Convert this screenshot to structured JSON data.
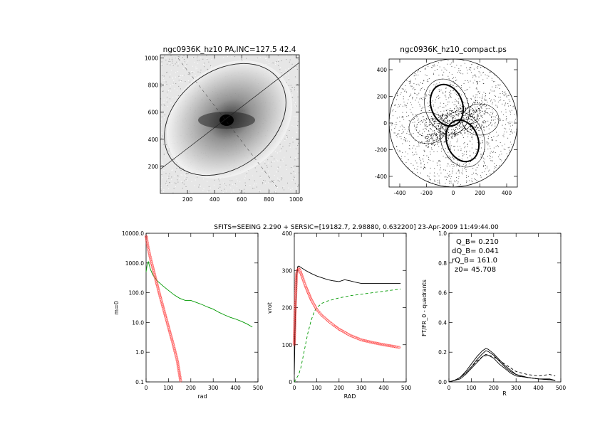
{
  "suptitle": "SFITS=SEEING 2.290 + SERSIC=[19182.7, 2.98880, 0.632200]  23-Apr-2009 11:49:44.00",
  "chart_data": [
    {
      "id": "image-panel",
      "type": "heatmap",
      "title": "ngc0936K_hz10 PA,INC=127.5 42.4",
      "xlim": [
        0,
        1024
      ],
      "ylim": [
        0,
        1024
      ],
      "xticks": [
        "200",
        "400",
        "600",
        "800",
        "1000"
      ],
      "yticks": [
        "200",
        "400",
        "600",
        "800",
        "1000"
      ],
      "ellipse": {
        "cx": 510,
        "cy": 535,
        "pa_deg": 127.5,
        "inc_deg": 42.4
      }
    },
    {
      "id": "compact-panel",
      "type": "scatter",
      "title": "ngc0936K_hz10_compact.ps",
      "xlim": [
        -480,
        480
      ],
      "ylim": [
        -480,
        480
      ],
      "xticks": [
        "-400",
        "-200",
        "0",
        "200",
        "400"
      ],
      "yticks": [
        "-400",
        "-200",
        "0",
        "200",
        "400"
      ],
      "disk_radius": 440
    },
    {
      "id": "density-panel",
      "type": "line",
      "title": "",
      "xlabel": "rad",
      "ylabel": "m=0",
      "ylog": true,
      "xlim": [
        0,
        500
      ],
      "ylim": [
        0.1,
        10000
      ],
      "xticks": [
        "0",
        "100",
        "200",
        "300",
        "400",
        "500"
      ],
      "yticks": [
        "0.1",
        "1.0",
        "10.0",
        "100.0",
        "1000.0",
        "10000.0"
      ],
      "series": [
        {
          "color": "#009900",
          "style": "solid",
          "x": [
            0,
            5,
            10,
            20,
            30,
            50,
            75,
            100,
            125,
            150,
            175,
            200,
            225,
            250,
            275,
            300,
            325,
            350,
            375,
            400,
            425,
            450,
            475
          ],
          "y": [
            500,
            900,
            1100,
            600,
            400,
            250,
            170,
            120,
            85,
            65,
            55,
            55,
            47,
            40,
            33,
            28,
            22,
            18,
            15,
            13,
            11,
            9,
            7
          ]
        },
        {
          "color": "#ff2a2a",
          "style": "markers",
          "x": [
            0,
            2,
            5,
            10,
            20,
            40,
            60,
            80,
            100,
            120,
            140,
            155
          ],
          "y": [
            8000,
            7000,
            5000,
            3000,
            1400,
            350,
            90,
            25,
            7,
            2,
            0.5,
            0.1
          ]
        }
      ]
    },
    {
      "id": "rotation-panel",
      "type": "line",
      "title": "",
      "xlabel": "RAD",
      "ylabel": "vrot",
      "xlim": [
        0,
        500
      ],
      "ylim": [
        0,
        400
      ],
      "xticks": [
        "0",
        "100",
        "200",
        "300",
        "400",
        "500"
      ],
      "yticks": [
        "0",
        "100",
        "200",
        "300",
        "400"
      ],
      "series": [
        {
          "color": "#000000",
          "style": "solid",
          "x": [
            0,
            5,
            10,
            15,
            20,
            30,
            50,
            75,
            100,
            125,
            150,
            175,
            200,
            225,
            250,
            275,
            300,
            350,
            400,
            450,
            475
          ],
          "y": [
            20,
            180,
            280,
            310,
            312,
            308,
            300,
            292,
            285,
            280,
            275,
            272,
            270,
            275,
            272,
            268,
            265,
            265,
            265,
            265,
            265
          ]
        },
        {
          "color": "#009900",
          "style": "dashed",
          "x": [
            0,
            10,
            20,
            30,
            40,
            50,
            60,
            75,
            90,
            100,
            125,
            150,
            175,
            200,
            250,
            300,
            350,
            400,
            450,
            475
          ],
          "y": [
            0,
            10,
            20,
            40,
            70,
            100,
            130,
            165,
            190,
            200,
            212,
            218,
            222,
            226,
            232,
            236,
            240,
            244,
            248,
            250
          ]
        },
        {
          "color": "#ff2a2a",
          "style": "markers",
          "x": [
            0,
            5,
            10,
            15,
            20,
            25,
            30,
            40,
            50,
            75,
            100,
            125,
            150,
            175,
            200,
            250,
            300,
            350,
            400,
            450,
            475
          ],
          "y": [
            100,
            220,
            290,
            302,
            305,
            300,
            292,
            275,
            258,
            222,
            195,
            178,
            165,
            153,
            142,
            125,
            113,
            106,
            100,
            95,
            92
          ]
        }
      ]
    },
    {
      "id": "qb-panel",
      "type": "line",
      "title": "",
      "xlabel": "R",
      "ylabel": "FT/FR_0 - quadrants",
      "xlim": [
        0,
        500
      ],
      "ylim": [
        0,
        1.0
      ],
      "xticks": [
        "0",
        "100",
        "200",
        "300",
        "400",
        "500"
      ],
      "yticks": [
        "0.0",
        "0.2",
        "0.4",
        "0.6",
        "0.8",
        "1.0"
      ],
      "annotations": [
        "Q_B=  0.210",
        "dQ_B=  0.041",
        "rQ_B=  161.0",
        "z0= 45.708"
      ],
      "series": [
        {
          "color": "#000000",
          "style": "solid",
          "x": [
            0,
            25,
            50,
            75,
            100,
            125,
            150,
            165,
            175,
            200,
            225,
            250,
            275,
            300,
            350,
            400,
            450,
            475
          ],
          "y": [
            0,
            0.01,
            0.03,
            0.07,
            0.12,
            0.17,
            0.21,
            0.225,
            0.22,
            0.19,
            0.15,
            0.11,
            0.08,
            0.05,
            0.03,
            0.02,
            0.02,
            0.01
          ]
        },
        {
          "color": "#000000",
          "style": "solid",
          "x": [
            0,
            25,
            50,
            75,
            100,
            125,
            150,
            165,
            175,
            200,
            225,
            250,
            275,
            300,
            350,
            400,
            450,
            475
          ],
          "y": [
            0,
            0.01,
            0.03,
            0.06,
            0.1,
            0.15,
            0.19,
            0.21,
            0.205,
            0.18,
            0.14,
            0.1,
            0.07,
            0.05,
            0.03,
            0.02,
            0.015,
            0.01
          ]
        },
        {
          "color": "#000000",
          "style": "solid",
          "x": [
            0,
            25,
            50,
            75,
            100,
            125,
            150,
            165,
            175,
            200,
            225,
            250,
            275,
            300,
            350,
            400,
            450,
            475
          ],
          "y": [
            0,
            0.01,
            0.02,
            0.05,
            0.09,
            0.13,
            0.17,
            0.185,
            0.18,
            0.16,
            0.12,
            0.09,
            0.06,
            0.04,
            0.03,
            0.02,
            0.015,
            0.01
          ]
        },
        {
          "color": "#000000",
          "style": "dashed",
          "x": [
            0,
            25,
            50,
            75,
            100,
            125,
            150,
            175,
            200,
            250,
            300,
            350,
            400,
            450,
            475
          ],
          "y": [
            0,
            0.01,
            0.03,
            0.06,
            0.1,
            0.14,
            0.17,
            0.18,
            0.17,
            0.12,
            0.07,
            0.05,
            0.04,
            0.05,
            0.04
          ]
        }
      ]
    }
  ]
}
